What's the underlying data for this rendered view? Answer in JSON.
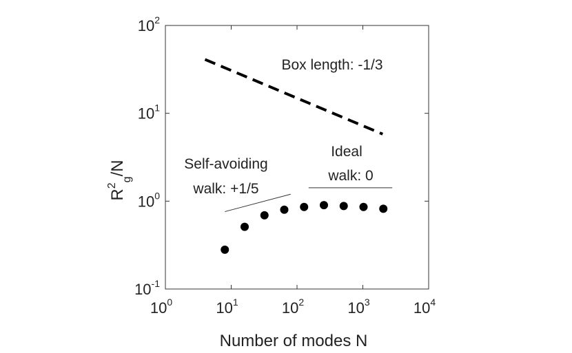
{
  "chart_data": {
    "type": "scatter",
    "x_scale": "log",
    "y_scale": "log",
    "xlim": [
      1,
      10000
    ],
    "ylim": [
      0.1,
      100
    ],
    "xlabel": "Number of modes N",
    "ylabel_base": "R",
    "ylabel_sup": "2",
    "ylabel_sub": "g",
    "ylabel_tail": "/N",
    "x_ticks": [
      {
        "value": 1,
        "base": "10",
        "exp": "0"
      },
      {
        "value": 10,
        "base": "10",
        "exp": "1"
      },
      {
        "value": 100,
        "base": "10",
        "exp": "2"
      },
      {
        "value": 1000,
        "base": "10",
        "exp": "3"
      },
      {
        "value": 10000,
        "base": "10",
        "exp": "4"
      }
    ],
    "y_ticks": [
      {
        "value": 0.1,
        "base": "10",
        "exp": "-1"
      },
      {
        "value": 1,
        "base": "10",
        "exp": "0"
      },
      {
        "value": 10,
        "base": "10",
        "exp": "1"
      },
      {
        "value": 100,
        "base": "10",
        "exp": "2"
      }
    ],
    "points": [
      {
        "x": 8,
        "y": 0.28
      },
      {
        "x": 16,
        "y": 0.51
      },
      {
        "x": 32,
        "y": 0.69
      },
      {
        "x": 64,
        "y": 0.8
      },
      {
        "x": 128,
        "y": 0.86
      },
      {
        "x": 256,
        "y": 0.9
      },
      {
        "x": 512,
        "y": 0.88
      },
      {
        "x": 1024,
        "y": 0.86
      },
      {
        "x": 2048,
        "y": 0.82
      }
    ],
    "reference_lines": [
      {
        "id": "box-length",
        "style": "dashed",
        "x": [
          4,
          2000
        ],
        "y": [
          41,
          5.8
        ],
        "label": "Box length: -1/3"
      },
      {
        "id": "self-avoiding-walk",
        "style": "thin",
        "x": [
          8,
          80
        ],
        "y": [
          0.76,
          1.2
        ],
        "label_lines": [
          "Self-avoiding",
          "walk: +1/5"
        ]
      },
      {
        "id": "ideal-walk",
        "style": "thin",
        "x": [
          150,
          2800
        ],
        "y": [
          1.42,
          1.42
        ],
        "label_lines": [
          "Ideal",
          "walk: 0"
        ]
      }
    ],
    "grid": false,
    "legend": "none",
    "colors": {
      "marker": "#000000",
      "axis": "#333333",
      "thin_line": "#333333"
    }
  }
}
